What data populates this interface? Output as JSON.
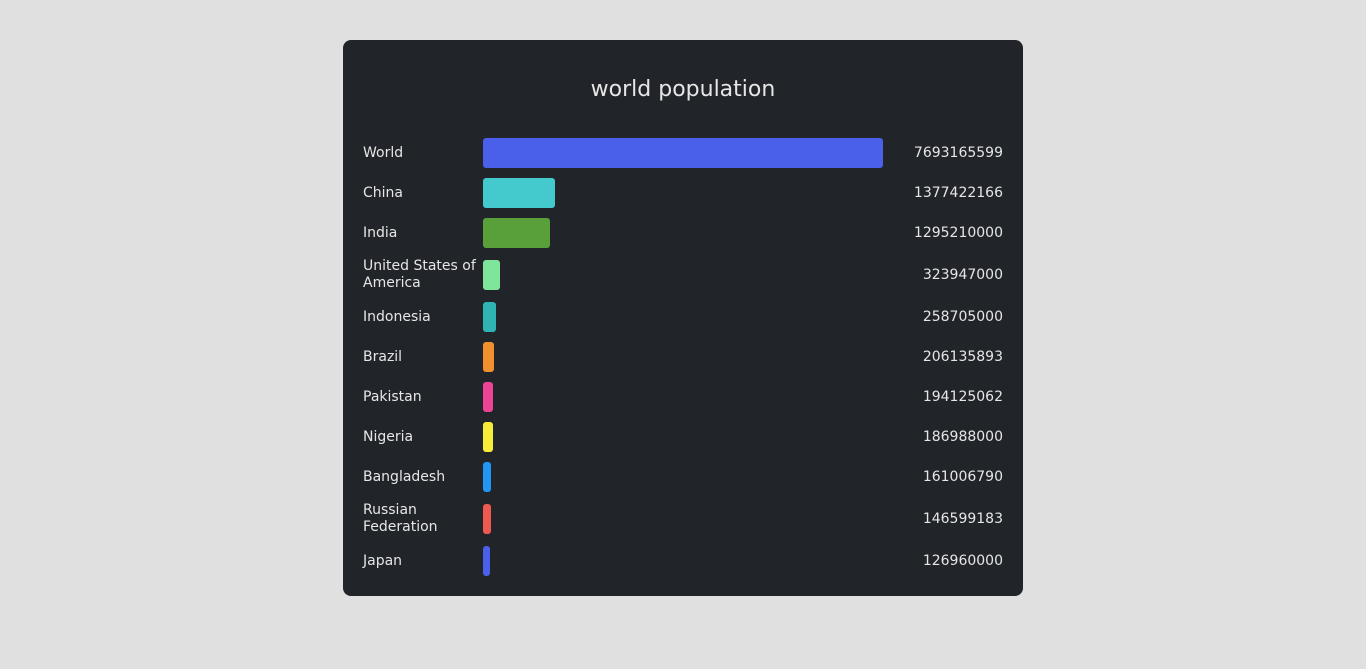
{
  "chart_data": {
    "type": "bar",
    "orientation": "horizontal",
    "title": "world population",
    "categories": [
      "World",
      "China",
      "India",
      "United States of America",
      "Indonesia",
      "Brazil",
      "Pakistan",
      "Nigeria",
      "Bangladesh",
      "Russian Federation",
      "Japan"
    ],
    "values": [
      7693165599,
      1377422166,
      1295210000,
      323947000,
      258705000,
      206135893,
      194125062,
      186988000,
      161006790,
      146599183,
      126960000
    ],
    "value_labels": [
      "7693165599",
      "1377422166",
      "1295210000",
      "323947000",
      "258705000",
      "206135893",
      "194125062",
      "186988000",
      "161006790",
      "146599183",
      "126960000"
    ],
    "colors": [
      "#4a5fea",
      "#44c9cc",
      "#5aa03a",
      "#7fe59b",
      "#2fb3b3",
      "#f0912d",
      "#ec4495",
      "#f8ec3a",
      "#2196f3",
      "#ef5a50",
      "#4a5fea"
    ],
    "xlim": [
      0,
      7693165599
    ],
    "grid": false,
    "legend": "none"
  }
}
